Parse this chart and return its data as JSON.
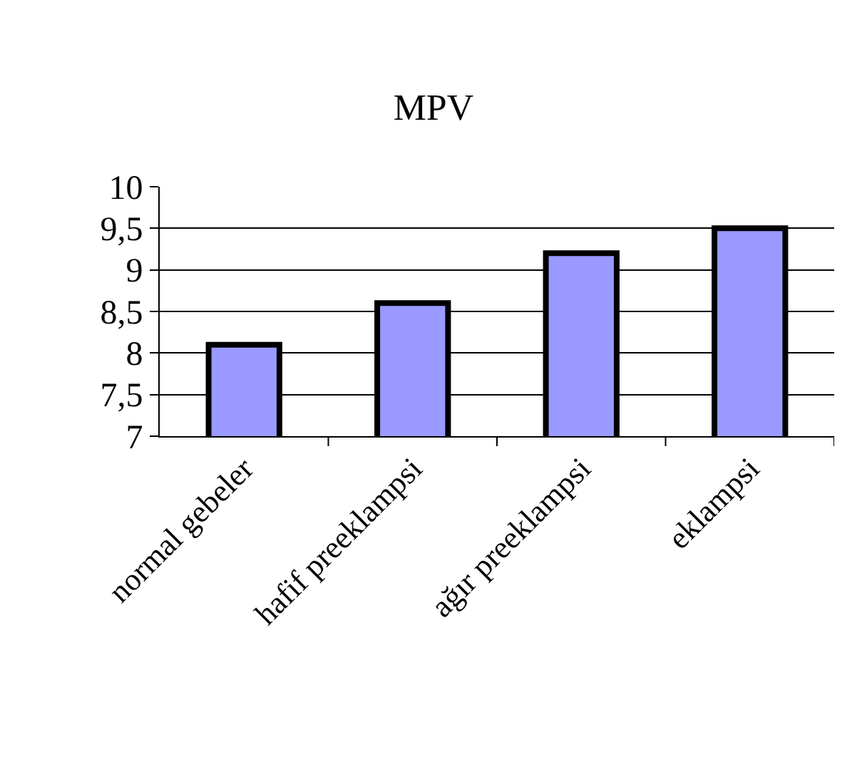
{
  "chart_data": {
    "type": "bar",
    "title": "MPV",
    "categories": [
      "normal gebeler",
      "hafif preeklampsi",
      "ağır preeklampsi",
      "eklampsi"
    ],
    "values": [
      8.1,
      8.6,
      9.2,
      9.5
    ],
    "color": "#9999ff",
    "ylim": [
      7,
      10
    ],
    "yticks": [
      7,
      {
        "value": 7.5,
        "label": "7,5"
      },
      8,
      {
        "value": 8.5,
        "label": "8,5"
      },
      9,
      {
        "value": 9.5,
        "label": "9,5"
      },
      10
    ],
    "grid": "y"
  }
}
